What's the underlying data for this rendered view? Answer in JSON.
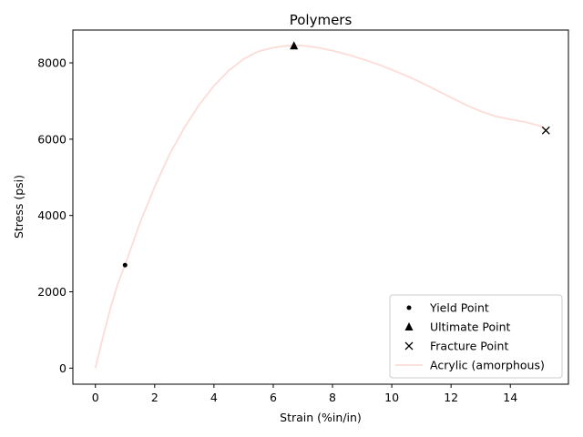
{
  "chart_data": {
    "type": "line",
    "title": "Polymers",
    "xlabel": "Strain (%in/in)",
    "ylabel": "Stress (psi)",
    "xlim": [
      -0.76,
      15.96
    ],
    "ylim": [
      -421,
      8860
    ],
    "xticks": [
      0,
      2,
      4,
      6,
      8,
      10,
      12,
      14
    ],
    "yticks": [
      0,
      2000,
      4000,
      6000,
      8000
    ],
    "grid": false,
    "legend_position": "lower-right",
    "series": [
      {
        "name": "Acrylic (amorphous)",
        "color": "#fcdcd6",
        "x": [
          0,
          0.25,
          0.5,
          0.75,
          1.0,
          1.5,
          2.0,
          2.5,
          3.0,
          3.5,
          4.0,
          4.5,
          5.0,
          5.5,
          6.0,
          6.5,
          6.7,
          7.0,
          7.5,
          8.0,
          8.5,
          9.0,
          9.5,
          10.0,
          10.5,
          11.0,
          11.5,
          12.0,
          12.5,
          13.0,
          13.5,
          14.0,
          14.5,
          15.0,
          15.2
        ],
        "y": [
          0,
          800,
          1550,
          2200,
          2700,
          3800,
          4750,
          5600,
          6300,
          6900,
          7400,
          7800,
          8100,
          8300,
          8400,
          8450,
          8460,
          8450,
          8400,
          8320,
          8220,
          8100,
          7970,
          7820,
          7660,
          7480,
          7290,
          7090,
          6900,
          6730,
          6600,
          6520,
          6450,
          6350,
          6230
        ]
      }
    ],
    "markers": [
      {
        "name": "Yield Point",
        "symbol": "dot",
        "x": 1.0,
        "y": 2700
      },
      {
        "name": "Ultimate Point",
        "symbol": "triangle",
        "x": 6.7,
        "y": 8460
      },
      {
        "name": "Fracture Point",
        "symbol": "x",
        "x": 15.2,
        "y": 6230
      }
    ]
  }
}
